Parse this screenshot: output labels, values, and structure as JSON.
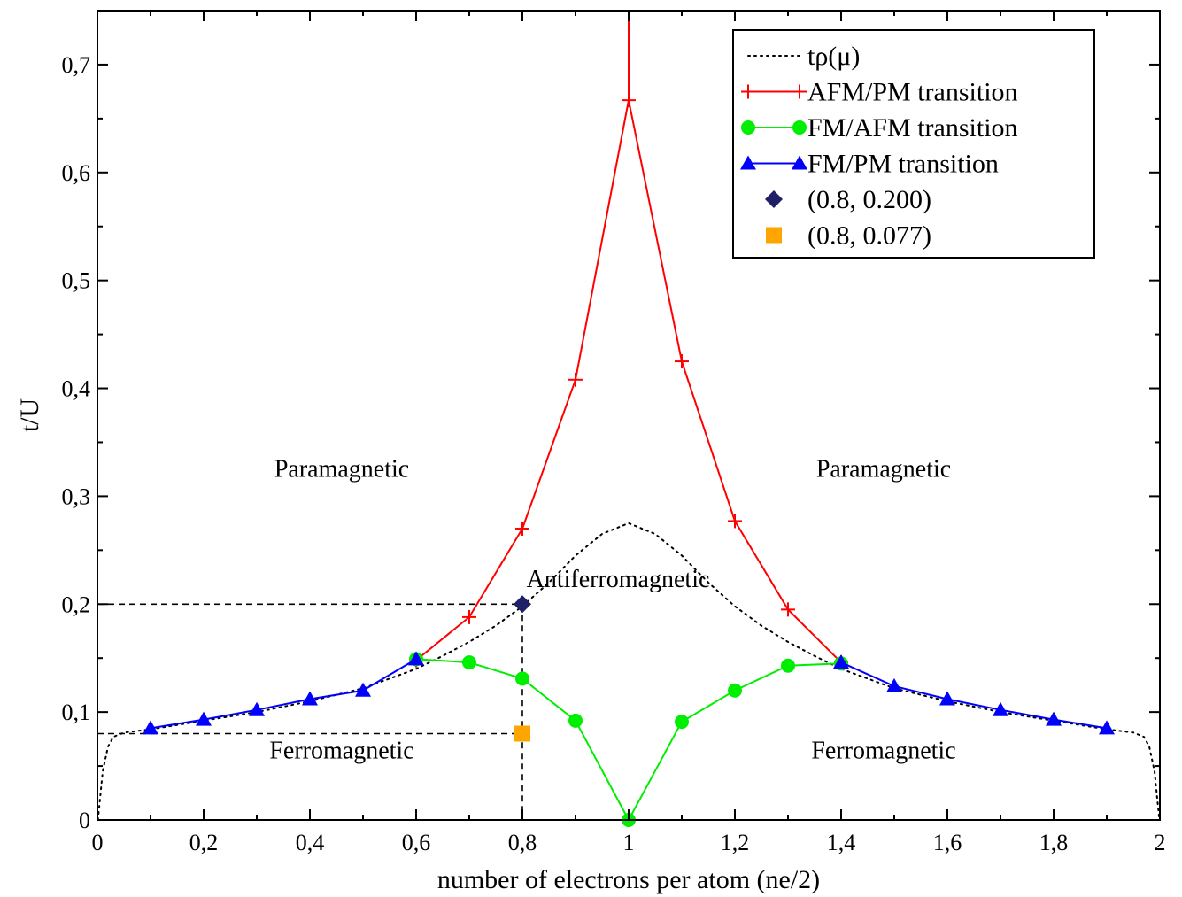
{
  "chart_data": {
    "type": "line",
    "xlabel": "number of electrons per atom (ne/2)",
    "ylabel": "t/U",
    "xlim": [
      0,
      2
    ],
    "ylim": [
      0,
      0.75
    ],
    "x_ticks": [
      0,
      0.2,
      0.4,
      0.6,
      0.8,
      1,
      1.2,
      1.4,
      1.6,
      1.8,
      2
    ],
    "x_tick_labels": [
      "0",
      "0,2",
      "0,4",
      "0,6",
      "0,8",
      "1",
      "1,2",
      "1,4",
      "1,6",
      "1,8",
      "2"
    ],
    "y_ticks": [
      0,
      0.1,
      0.2,
      0.3,
      0.4,
      0.5,
      0.6,
      0.7
    ],
    "y_tick_labels": [
      "0",
      "0,1",
      "0,2",
      "0,3",
      "0,4",
      "0,5",
      "0,6",
      "0,7"
    ],
    "grid": false,
    "legend_position": "top-right",
    "series": [
      {
        "name": "tρ(μ)",
        "style": "dotted",
        "color": "#000000",
        "x": [
          0.001,
          0.005,
          0.01,
          0.02,
          0.03,
          0.05,
          0.1,
          0.2,
          0.3,
          0.4,
          0.5,
          0.6,
          0.65,
          0.7,
          0.75,
          0.8,
          0.85,
          0.9,
          0.95,
          1.0,
          1.05,
          1.1,
          1.15,
          1.2,
          1.25,
          1.3,
          1.35,
          1.4,
          1.5,
          1.6,
          1.7,
          1.8,
          1.9,
          1.95,
          1.97,
          1.98,
          1.99,
          1.995,
          1.999
        ],
        "y": [
          0.0,
          0.02,
          0.045,
          0.068,
          0.077,
          0.081,
          0.084,
          0.092,
          0.1,
          0.11,
          0.122,
          0.14,
          0.152,
          0.165,
          0.18,
          0.198,
          0.22,
          0.245,
          0.265,
          0.275,
          0.265,
          0.245,
          0.22,
          0.198,
          0.18,
          0.165,
          0.152,
          0.14,
          0.122,
          0.11,
          0.1,
          0.092,
          0.084,
          0.081,
          0.077,
          0.068,
          0.045,
          0.02,
          0.0
        ]
      },
      {
        "name": "AFM/PM transition",
        "marker": "plus",
        "color": "#ff0000",
        "x": [
          0.6,
          0.7,
          0.8,
          0.9,
          1.0,
          1.1,
          1.2,
          1.3,
          1.4
        ],
        "y": [
          0.148,
          0.188,
          0.27,
          0.408,
          0.667,
          0.425,
          0.277,
          0.195,
          0.146
        ],
        "extra_segment": [
          [
            1.0,
            0.667
          ],
          [
            1.0,
            0.75
          ]
        ]
      },
      {
        "name": "FM/AFM transition",
        "marker": "circle",
        "color": "#00ee00",
        "x": [
          0.6,
          0.7,
          0.8,
          0.9,
          1.0,
          1.1,
          1.2,
          1.3,
          1.4
        ],
        "y": [
          0.149,
          0.146,
          0.131,
          0.092,
          0.0,
          0.091,
          0.12,
          0.143,
          0.145
        ]
      },
      {
        "name": "FM/PM transition",
        "marker": "triangle",
        "color": "#0000ff",
        "x": [
          0.1,
          0.2,
          0.3,
          0.4,
          0.5,
          0.6,
          1.4,
          1.5,
          1.6,
          1.7,
          1.8,
          1.9
        ],
        "y": [
          0.085,
          0.093,
          0.102,
          0.112,
          0.12,
          0.149,
          0.146,
          0.124,
          0.112,
          0.102,
          0.093,
          0.085
        ],
        "segments": [
          [
            0,
            6
          ],
          [
            6,
            12
          ]
        ]
      }
    ],
    "points": [
      {
        "name": "(0.8, 0.200)",
        "marker": "diamond",
        "color": "#1f2066",
        "x": 0.8,
        "y": 0.2
      },
      {
        "name": "(0.8, 0.077)",
        "marker": "square",
        "color": "#ffa500",
        "x": 0.8,
        "y": 0.08
      }
    ],
    "guide_lines": [
      {
        "points": [
          [
            0,
            0.2
          ],
          [
            0.8,
            0.2
          ],
          [
            0.8,
            0
          ]
        ]
      },
      {
        "points": [
          [
            0,
            0.08
          ],
          [
            0.8,
            0.08
          ]
        ]
      }
    ],
    "annotations": [
      {
        "text": "Paramagnetic",
        "x": 0.46,
        "y": 0.318,
        "anchor": "middle"
      },
      {
        "text": "Paramagnetic",
        "x": 1.48,
        "y": 0.318,
        "anchor": "middle"
      },
      {
        "text": "Antiferromagnetic",
        "x": 0.98,
        "y": 0.216,
        "anchor": "middle"
      },
      {
        "text": "Ferromagnetic",
        "x": 0.46,
        "y": 0.057,
        "anchor": "middle"
      },
      {
        "text": "Ferromagnetic",
        "x": 1.48,
        "y": 0.057,
        "anchor": "middle"
      }
    ]
  }
}
